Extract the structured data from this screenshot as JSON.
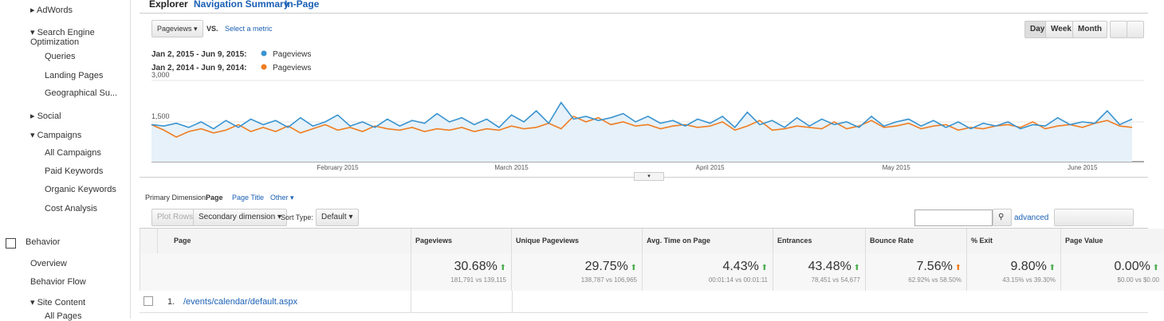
{
  "nav": {
    "items": [
      "AdWords",
      "Search Engine Optimization",
      "Queries",
      "Landing Pages",
      "Geographical Su...",
      "Social",
      "Campaigns",
      "All Campaigns",
      "Paid Keywords",
      "Organic Keywords",
      "Cost Analysis",
      "Behavior",
      "Overview",
      "Behavior Flow",
      "Site Content",
      "All Pages"
    ]
  },
  "tabs": [
    "Explorer",
    "Navigation Summary",
    "In-Page"
  ],
  "controls": {
    "metric": "Pageviews",
    "vs": "VS.",
    "select": "Select a metric",
    "periods": [
      "Day",
      "Week",
      "Month"
    ]
  },
  "chart_data": {
    "type": "line",
    "categories": [
      null,
      null,
      null,
      null,
      null,
      null,
      null,
      null,
      null,
      null,
      null,
      null,
      null,
      null,
      null,
      "February 2015",
      null,
      null,
      null,
      null,
      null,
      null,
      null,
      null,
      null,
      null,
      null,
      null,
      null,
      "March 2015",
      null,
      null,
      null,
      null,
      null,
      null,
      null,
      null,
      null,
      null,
      null,
      null,
      null,
      null,
      null,
      "April 2015",
      null,
      null,
      null,
      null,
      null,
      null,
      null,
      null,
      null,
      null,
      null,
      null,
      null,
      null,
      "May 2015",
      null,
      null,
      null,
      null,
      null,
      null,
      null,
      null,
      null,
      null,
      null,
      null,
      null,
      null,
      "June 2015",
      null,
      null,
      null,
      null
    ],
    "series": [
      {
        "period": "Jan 2, 2015 - Jun 9, 2015:",
        "name": "Pageviews",
        "color": "#3a94cf",
        "values": [
          1400,
          1350,
          1450,
          1300,
          1500,
          1250,
          1550,
          1300,
          1600,
          1400,
          1550,
          1300,
          1650,
          1350,
          1500,
          1750,
          1350,
          1500,
          1300,
          1600,
          1350,
          1550,
          1450,
          1800,
          1500,
          1650,
          1400,
          1600,
          1300,
          1750,
          1500,
          1900,
          1450,
          2200,
          1600,
          1700,
          1550,
          1650,
          1800,
          1500,
          1700,
          1450,
          1550,
          1350,
          1600,
          1450,
          1700,
          1300,
          1850,
          1400,
          1550,
          1300,
          1650,
          1350,
          1600,
          1400,
          1500,
          1300,
          1700,
          1350,
          1500,
          1600,
          1350,
          1550,
          1300,
          1500,
          1250,
          1450,
          1350,
          1500,
          1250,
          1400,
          1350,
          1650,
          1400,
          1500,
          1450,
          1900,
          1400,
          1600
        ]
      },
      {
        "period": "Jan 2, 2014 - Jun 9, 2014:",
        "name": "Pageviews",
        "color": "#f07d22",
        "values": [
          1400,
          1200,
          950,
          1150,
          1250,
          1100,
          1200,
          1400,
          1150,
          1300,
          1150,
          1350,
          1100,
          1250,
          1400,
          1200,
          1300,
          1150,
          1350,
          1250,
          1200,
          1300,
          1150,
          1250,
          1200,
          1300,
          1150,
          1250,
          1200,
          1350,
          1250,
          1300,
          1450,
          1250,
          1700,
          1500,
          1650,
          1400,
          1500,
          1350,
          1400,
          1250,
          1350,
          1400,
          1300,
          1350,
          1500,
          1200,
          1350,
          1550,
          1200,
          1250,
          1350,
          1300,
          1250,
          1500,
          1250,
          1350,
          1550,
          1300,
          1350,
          1450,
          1250,
          1350,
          1400,
          1200,
          1300,
          1250,
          1350,
          1400,
          1300,
          1500,
          1250,
          1350,
          1400,
          1300,
          1450,
          1550,
          1350,
          1300
        ]
      }
    ],
    "yticks": [
      {
        "value": 1500,
        "label": "1,500"
      },
      {
        "value": 3000,
        "label": "3,000"
      }
    ],
    "ylim": [
      0,
      3000
    ],
    "grid": true
  },
  "dimension": {
    "label": "Primary Dimension:",
    "options": [
      "Page",
      "Page Title",
      "Other"
    ]
  },
  "toolbar": {
    "plot": "Plot Rows",
    "secondary": "Secondary dimension",
    "sort_label": "Sort Type:",
    "sort": "Default",
    "advanced": "advanced"
  },
  "table": {
    "columns": [
      "Page",
      "Pageviews",
      "Unique Pageviews",
      "Avg. Time on Page",
      "Entrances",
      "Bounce Rate",
      "% Exit",
      "Page Value"
    ],
    "summary": [
      {
        "pct": "30.68%",
        "detail": "181,791 vs 139,115",
        "color": "#4caf50"
      },
      {
        "pct": "29.75%",
        "detail": "138,787 vs 106,965",
        "color": "#4caf50"
      },
      {
        "pct": "4.43%",
        "detail": "00:01:14 vs 00:01:11",
        "color": "#4caf50"
      },
      {
        "pct": "43.48%",
        "detail": "78,451 vs 54,677",
        "color": "#4caf50"
      },
      {
        "pct": "7.56%",
        "detail": "62.92% vs 58.50%",
        "color": "#f07d22"
      },
      {
        "pct": "9.80%",
        "detail": "43.15% vs 39.30%",
        "color": "#4caf50"
      },
      {
        "pct": "0.00%",
        "detail": "$0.00 vs $0.00",
        "color": "#4caf50"
      }
    ],
    "rows": [
      [
        "1.",
        "/events/calendar/default.aspx"
      ]
    ]
  }
}
